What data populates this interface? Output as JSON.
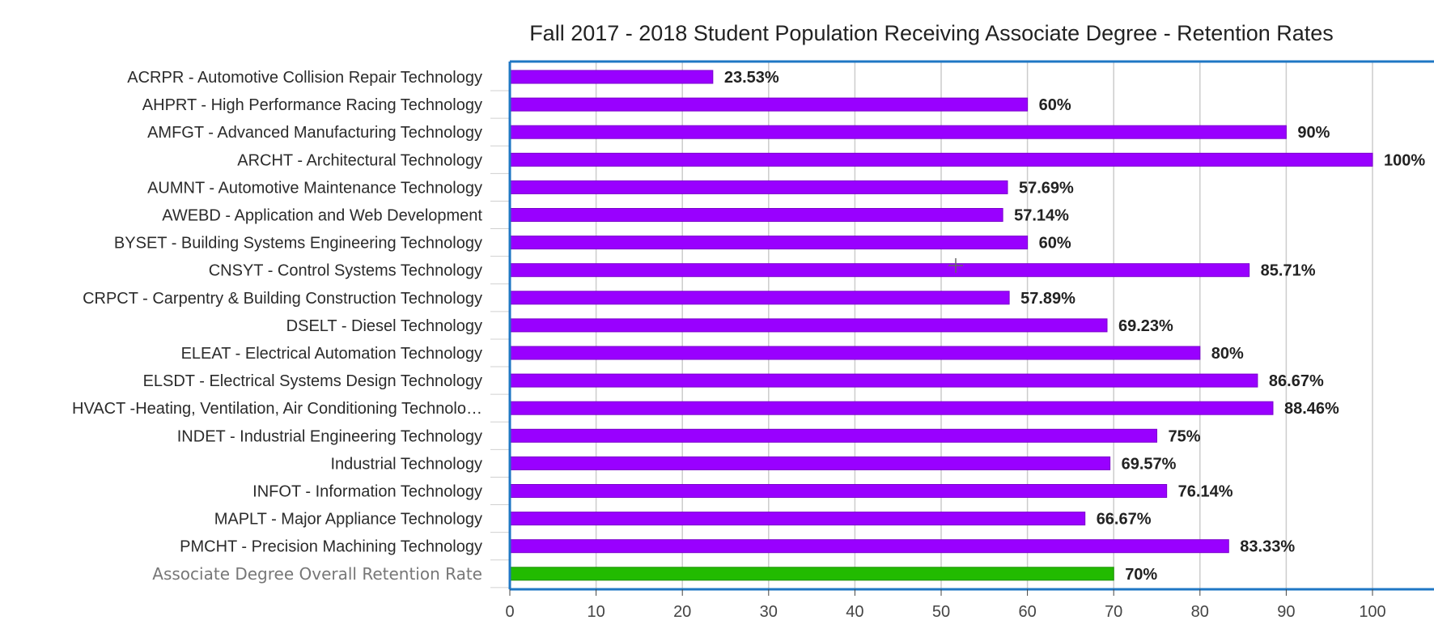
{
  "chart_data": {
    "type": "bar",
    "orientation": "horizontal",
    "title": "Fall 2017 - 2018 Student Population Receiving Associate Degree - Retention Rates",
    "xlabel": "",
    "ylabel": "",
    "xlim": [
      0,
      100
    ],
    "x_ticks": [
      0,
      10,
      20,
      30,
      40,
      50,
      60,
      70,
      80,
      90,
      100
    ],
    "grid": true,
    "legend": "none",
    "value_suffix": "%",
    "colors": {
      "bar": "#9900ff",
      "overall_bar": "#22bb00",
      "frame": "#1f77c4",
      "grid": "#cccccc"
    },
    "categories": [
      "ACRPR - Automotive Collision Repair Technology",
      "AHPRT - High Performance Racing Technology",
      "AMFGT - Advanced Manufacturing Technology",
      "ARCHT - Architectural Technology",
      "AUMNT - Automotive Maintenance Technology",
      "AWEBD - Application and Web Development",
      "BYSET - Building Systems Engineering Technology",
      "CNSYT - Control Systems Technology",
      "CRPCT - Carpentry & Building Construction Technology",
      "DSELT - Diesel Technology",
      "ELEAT - Electrical Automation Technology",
      "ELSDT - Electrical Systems Design Technology",
      "HVACT -Heating, Ventilation, Air Conditioning Technolo…",
      "INDET - Industrial Engineering Technology",
      "Industrial Technology",
      "INFOT - Information Technology",
      "MAPLT - Major Appliance Technology",
      "PMCHT - Precision Machining Technology",
      "Associate Degree Overall Retention Rate"
    ],
    "values": [
      23.53,
      60,
      90,
      100,
      57.69,
      57.14,
      60,
      85.71,
      57.89,
      69.23,
      80,
      86.67,
      88.46,
      75,
      69.57,
      76.14,
      66.67,
      83.33,
      70
    ],
    "value_labels": [
      "23.53%",
      "60%",
      "90%",
      "100%",
      "57.69%",
      "57.14%",
      "60%",
      "85.71%",
      "57.89%",
      "69.23%",
      "80%",
      "86.67%",
      "88.46%",
      "75%",
      "69.57%",
      "76.14%",
      "66.67%",
      "83.33%",
      "70%"
    ],
    "highlight_index": 18
  }
}
